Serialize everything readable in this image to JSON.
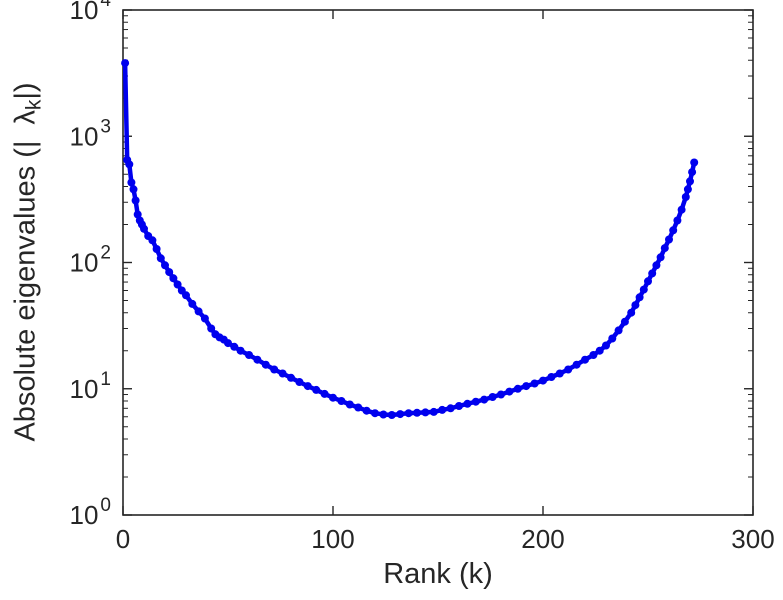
{
  "figure": {
    "background": "#ffffff",
    "axis_color": "#262626",
    "line_color": "#0000ee",
    "marker_color": "#0000ee"
  },
  "chart_data": {
    "type": "line",
    "title": "",
    "xlabel": "Rank (k)",
    "ylabel": {
      "prefix": "Absolute eigenvalues (|",
      "symbol": "λ",
      "subscript": "k",
      "suffix": "|)"
    },
    "x_scale": "linear",
    "y_scale": "log",
    "xlim": [
      0,
      300
    ],
    "ylim_log10": [
      0,
      4
    ],
    "x_ticks": [
      0,
      100,
      200,
      300
    ],
    "y_ticks_exponents": [
      0,
      1,
      2,
      3,
      4
    ],
    "grid": false,
    "legend": null,
    "marker": "dot",
    "series": [
      {
        "name": "absolute-eigenvalues",
        "points": [
          [
            1,
            3800
          ],
          [
            2,
            650
          ],
          [
            3,
            600
          ],
          [
            4,
            430
          ],
          [
            5,
            380
          ],
          [
            6,
            310
          ],
          [
            7,
            240
          ],
          [
            8,
            215
          ],
          [
            9,
            200
          ],
          [
            10,
            185
          ],
          [
            12,
            162
          ],
          [
            14,
            150
          ],
          [
            16,
            128
          ],
          [
            18,
            108
          ],
          [
            20,
            95
          ],
          [
            22,
            84
          ],
          [
            24,
            75
          ],
          [
            26,
            67
          ],
          [
            28,
            60
          ],
          [
            30,
            55
          ],
          [
            33,
            47
          ],
          [
            36,
            41
          ],
          [
            39,
            36
          ],
          [
            42,
            30
          ],
          [
            44,
            27
          ],
          [
            46,
            25.5
          ],
          [
            48,
            24.5
          ],
          [
            50,
            23
          ],
          [
            53,
            21.5
          ],
          [
            56,
            20
          ],
          [
            60,
            18.5
          ],
          [
            64,
            17
          ],
          [
            68,
            15.5
          ],
          [
            72,
            14.2
          ],
          [
            76,
            13.2
          ],
          [
            80,
            12.2
          ],
          [
            84,
            11.3
          ],
          [
            88,
            10.5
          ],
          [
            92,
            9.8
          ],
          [
            96,
            9.1
          ],
          [
            100,
            8.5
          ],
          [
            104,
            8.0
          ],
          [
            108,
            7.5
          ],
          [
            112,
            7.1
          ],
          [
            116,
            6.7
          ],
          [
            120,
            6.4
          ],
          [
            124,
            6.25
          ],
          [
            128,
            6.2
          ],
          [
            132,
            6.3
          ],
          [
            136,
            6.4
          ],
          [
            140,
            6.45
          ],
          [
            144,
            6.5
          ],
          [
            148,
            6.55
          ],
          [
            152,
            6.8
          ],
          [
            156,
            7.0
          ],
          [
            160,
            7.3
          ],
          [
            164,
            7.6
          ],
          [
            168,
            7.9
          ],
          [
            172,
            8.2
          ],
          [
            176,
            8.6
          ],
          [
            180,
            9.0
          ],
          [
            184,
            9.5
          ],
          [
            188,
            10.0
          ],
          [
            192,
            10.5
          ],
          [
            196,
            11.0
          ],
          [
            200,
            11.6
          ],
          [
            204,
            12.4
          ],
          [
            208,
            13.2
          ],
          [
            212,
            14.2
          ],
          [
            216,
            15.5
          ],
          [
            220,
            17
          ],
          [
            224,
            18.5
          ],
          [
            227,
            20
          ],
          [
            230,
            22
          ],
          [
            233,
            25
          ],
          [
            236,
            29
          ],
          [
            239,
            34
          ],
          [
            242,
            40
          ],
          [
            244,
            46
          ],
          [
            246,
            53
          ],
          [
            248,
            61
          ],
          [
            250,
            71
          ],
          [
            252,
            82
          ],
          [
            254,
            95
          ],
          [
            256,
            110
          ],
          [
            258,
            130
          ],
          [
            260,
            152
          ],
          [
            262,
            180
          ],
          [
            264,
            215
          ],
          [
            266,
            262
          ],
          [
            268,
            330
          ],
          [
            269,
            380
          ],
          [
            270,
            440
          ],
          [
            271,
            520
          ],
          [
            272,
            620
          ]
        ]
      }
    ]
  }
}
